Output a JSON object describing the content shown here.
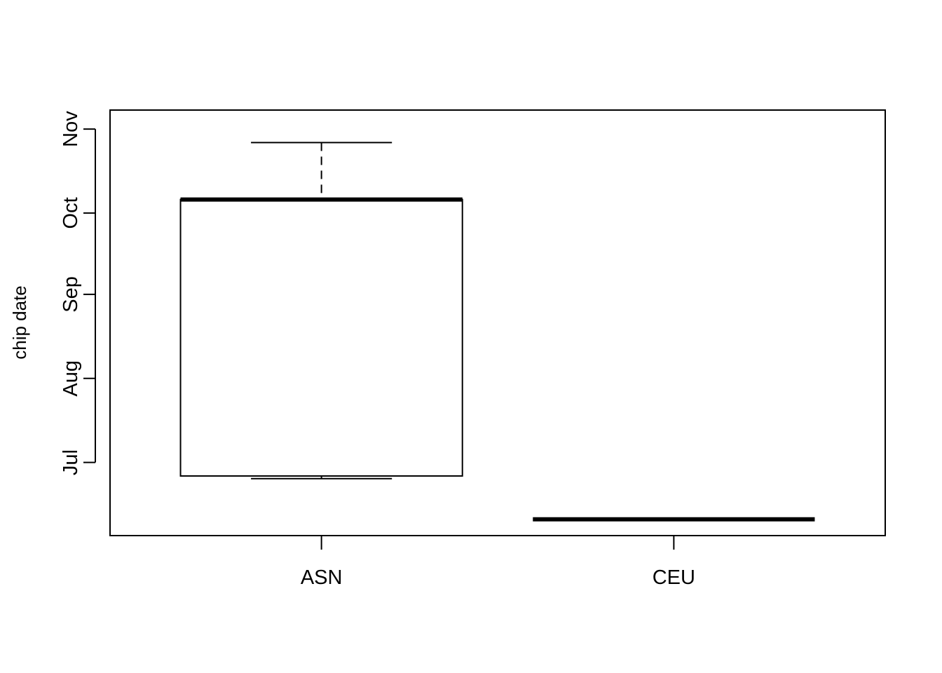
{
  "chart_data": {
    "type": "boxplot",
    "title": "",
    "xlabel": "",
    "ylabel": "chip date",
    "ylim": [
      "2006-06-04",
      "2006-11-08"
    ],
    "yticks": [
      {
        "label": "Jul",
        "value": "2006-07-01"
      },
      {
        "label": "Aug",
        "value": "2006-08-01"
      },
      {
        "label": "Sep",
        "value": "2006-09-01"
      },
      {
        "label": "Oct",
        "value": "2006-10-01"
      },
      {
        "label": "Nov",
        "value": "2006-11-01"
      }
    ],
    "grid": false,
    "categories": [
      "ASN",
      "CEU"
    ],
    "boxes": [
      {
        "category": "ASN",
        "whisker_low": "2006-06-25",
        "q1": "2006-06-26",
        "median": "2006-10-06",
        "q3": "2006-10-06",
        "whisker_high": "2006-10-27"
      },
      {
        "category": "CEU",
        "whisker_low": "2006-06-10",
        "q1": "2006-06-10",
        "median": "2006-06-10",
        "q3": "2006-06-10",
        "whisker_high": "2006-06-10"
      }
    ]
  }
}
